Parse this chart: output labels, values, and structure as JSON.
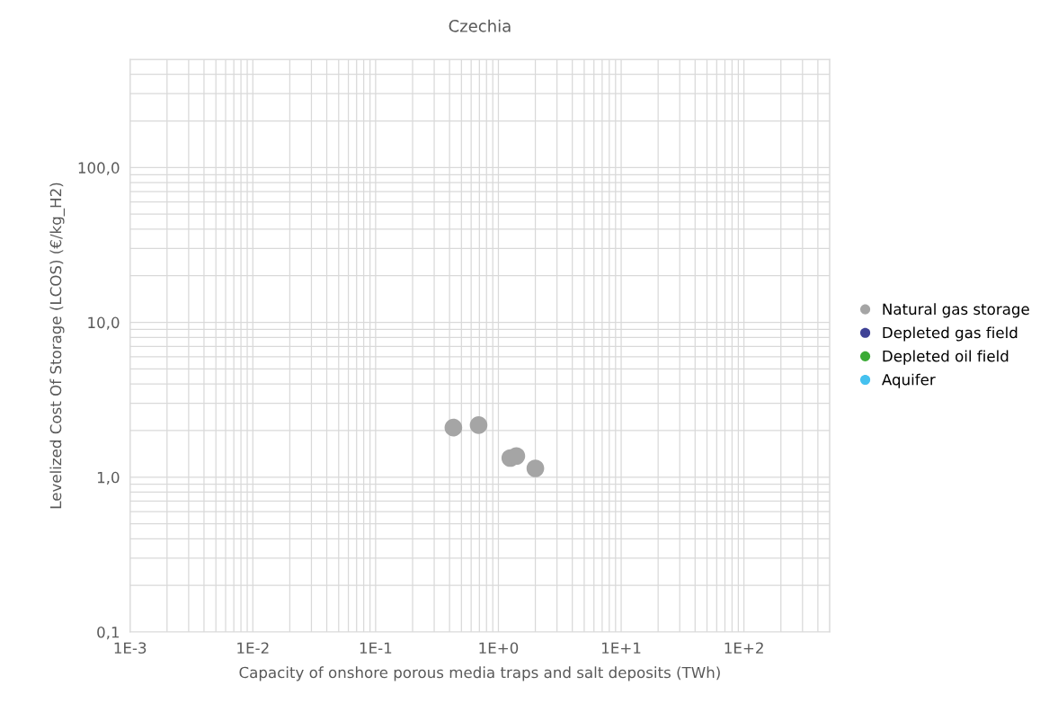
{
  "chart_data": {
    "type": "scatter",
    "title": "Czechia",
    "xlabel": "Capacity of onshore porous media traps and salt deposits (TWh)",
    "ylabel": "Levelized Cost Of Storage (LCOS) (€/kg_H2)",
    "series": [
      {
        "name": "Natural gas storage",
        "color": "#a5a5a5",
        "x": [
          0.43,
          0.69,
          1.25,
          1.4,
          2.0
        ],
        "values": [
          2.09,
          2.17,
          1.33,
          1.37,
          1.14
        ]
      },
      {
        "name": "Depleted gas field",
        "color": "#3f4296"
      },
      {
        "name": "Depleted oil field",
        "color": "#3aaa35"
      },
      {
        "name": "Aquifer",
        "color": "#45c1ef"
      }
    ],
    "log": "xy",
    "xlim": [
      0.001,
      500
    ],
    "xticks": [
      {
        "value": 0.001,
        "label": "1E-3"
      },
      {
        "value": 0.01,
        "label": "1E-2"
      },
      {
        "value": 0.1,
        "label": "1E-1"
      },
      {
        "value": 1,
        "label": "1E+0"
      },
      {
        "value": 10,
        "label": "1E+1"
      },
      {
        "value": 100,
        "label": "1E+2"
      }
    ],
    "ylim": [
      0.1,
      500
    ],
    "yticks": [
      {
        "value": 0.1,
        "label": "0,1"
      },
      {
        "value": 1,
        "label": "1,0"
      },
      {
        "value": 10,
        "label": "10,0"
      },
      {
        "value": 100,
        "label": "100,0"
      }
    ],
    "grid": true,
    "legend": "right",
    "marker": "circle"
  }
}
